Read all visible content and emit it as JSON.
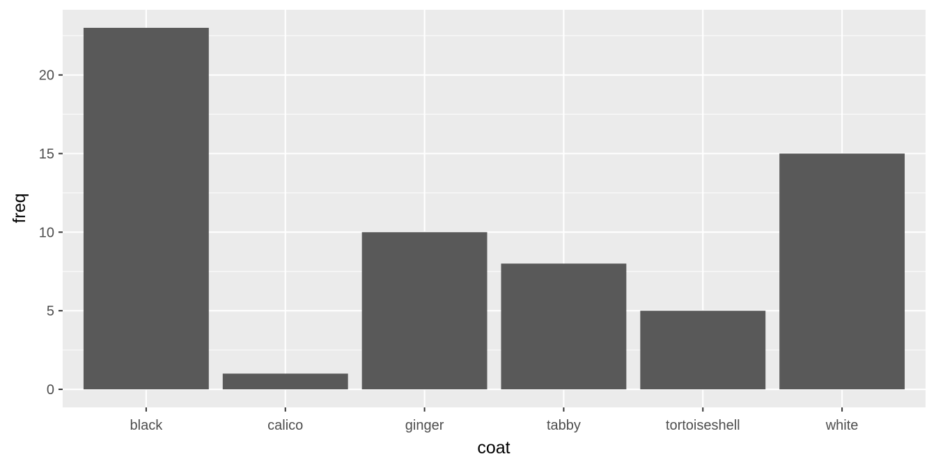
{
  "chart_data": {
    "type": "bar",
    "categories": [
      "black",
      "calico",
      "ginger",
      "tabby",
      "tortoiseshell",
      "white"
    ],
    "values": [
      23,
      1,
      10,
      8,
      5,
      15
    ],
    "title": "",
    "xlabel": "coat",
    "ylabel": "freq",
    "ylim": [
      -1.15,
      24.15
    ],
    "yticks": [
      0,
      5,
      10,
      15,
      20
    ],
    "grid": true,
    "legend": "none",
    "colors": {
      "panel_background": "#ebebeb",
      "grid_major": "#ffffff",
      "bar_fill": "#595959",
      "tick_text": "#4d4d4d",
      "axis_title": "#000000"
    }
  }
}
